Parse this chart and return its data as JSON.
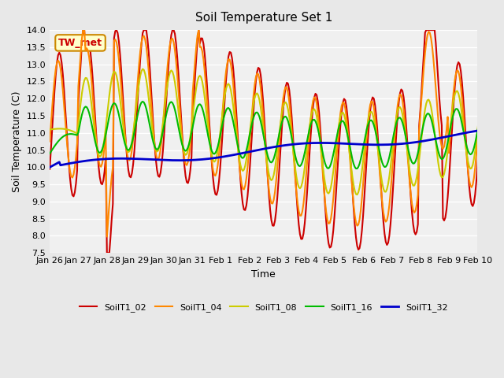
{
  "title": "Soil Temperature Set 1",
  "xlabel": "Time",
  "ylabel": "Soil Temperature (C)",
  "ylim": [
    7.5,
    14.0
  ],
  "annotation": "TW_met",
  "annotation_color": "#cc0000",
  "annotation_bg": "#ffffcc",
  "annotation_border": "#cc8800",
  "series": {
    "SoilT1_02": {
      "color": "#cc0000",
      "linewidth": 1.5
    },
    "SoilT1_04": {
      "color": "#ff8800",
      "linewidth": 1.5
    },
    "SoilT1_08": {
      "color": "#cccc00",
      "linewidth": 1.5
    },
    "SoilT1_16": {
      "color": "#00bb00",
      "linewidth": 1.5
    },
    "SoilT1_32": {
      "color": "#0000cc",
      "linewidth": 2.0
    }
  },
  "bg_color": "#e8e8e8",
  "plot_bg": "#f0f0f0",
  "grid_color": "#ffffff",
  "yticks": [
    7.5,
    8.0,
    8.5,
    9.0,
    9.5,
    10.0,
    10.5,
    11.0,
    11.5,
    12.0,
    12.5,
    13.0,
    13.5,
    14.0
  ],
  "day_labels": [
    "Jan 26",
    "Jan 27",
    "Jan 28",
    "Jan 29",
    "Jan 30",
    "Jan 31",
    "Feb 1",
    "Feb 2",
    "Feb 3",
    "Feb 4",
    "Feb 5",
    "Feb 6",
    "Feb 7",
    "Feb 8",
    "Feb 9",
    "Feb 10"
  ],
  "n_days": 16
}
